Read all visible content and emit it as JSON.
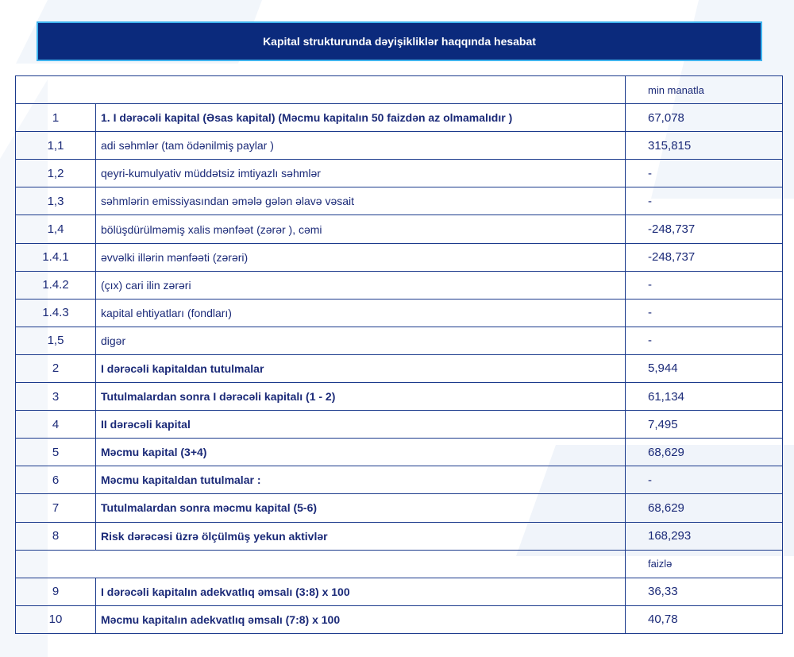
{
  "title": "Kapital strukturunda dəyişikliklər haqqında hesabat",
  "unit_money": "min manatla",
  "unit_percent": "faizlə",
  "rows_money": [
    {
      "num": "1",
      "label": "1. I dərəcəli kapital (Əsas kapital) (Məcmu kapitalın 50 faizdən  az olmamalıdır )",
      "value": "67,078",
      "bold": true
    },
    {
      "num": "1,1",
      "label": "adi səhmlər (tam ödənilmiş paylar )",
      "value": "315,815",
      "bold": false
    },
    {
      "num": "1,2",
      "label": "qeyri-kumulyativ müddətsiz imtiyazlı səhmlər",
      "value": "-",
      "bold": false
    },
    {
      "num": "1,3",
      "label": "səhmlərin emissiyasından əmələ gələn  əlavə vəsait",
      "value": "-",
      "bold": false
    },
    {
      "num": "1,4",
      "label": "bölüşdürülməmiş xalis mənfəət (zərər ), cəmi",
      "value": "-248,737",
      "bold": false
    },
    {
      "num": "1.4.1",
      "label": "əvvəlki illərin mənfəəti (zərəri)",
      "value": "-248,737",
      "bold": false
    },
    {
      "num": "1.4.2",
      "label": "(çıx) cari ilin zərəri",
      "value": "-",
      "bold": false
    },
    {
      "num": "1.4.3",
      "label": "kapital ehtiyatları (fondları)",
      "value": "-",
      "bold": false
    },
    {
      "num": "1,5",
      "label": "digər",
      "value": "-",
      "bold": false
    },
    {
      "num": "2",
      "label": "I dərəcəli kapitaldan  tutulmalar",
      "value": "5,944",
      "bold": true
    },
    {
      "num": "3",
      "label": "Tutulmalardan  sonra I dərəcəli kapitalı (1 - 2)",
      "value": "61,134",
      "bold": true
    },
    {
      "num": "4",
      "label": "II dərəcəli  kapital",
      "value": "7,495",
      "bold": true
    },
    {
      "num": "5",
      "label": "Məcmu kapital (3+4)",
      "value": "68,629",
      "bold": true
    },
    {
      "num": "6",
      "label": "Məcmu kapitaldan tutulmalar :",
      "value": "-",
      "bold": true
    },
    {
      "num": "7",
      "label": "Tutulmalardan sonra məcmu kapital (5-6)",
      "value": "68,629",
      "bold": true
    },
    {
      "num": "8",
      "label": "Risk dərəcəsi üzrə ölçülmüş  yekun aktivlər",
      "value": "168,293",
      "bold": true
    }
  ],
  "rows_percent": [
    {
      "num": "9",
      "label": "I dərəcəli  kapitalın  adekvatlıq əmsalı (3:8) x 100",
      "value": "36,33",
      "bold": true
    },
    {
      "num": "10",
      "label": "Məcmu kapitalın  adekvatlıq  əmsalı (7:8) x 100",
      "value": "40,78",
      "bold": true
    }
  ]
}
